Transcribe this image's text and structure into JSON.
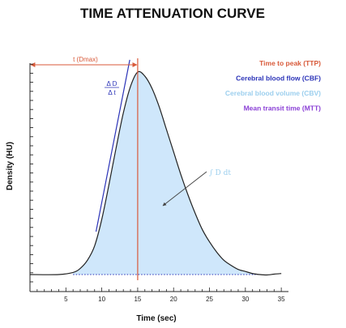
{
  "chart_data": {
    "type": "area",
    "title": "TIME ATTENUATION CURVE",
    "xlabel": "Time (sec)",
    "ylabel": "Density (HU)",
    "xlim": [
      0,
      36
    ],
    "ylim": [
      0,
      100
    ],
    "x_ticks": [
      5,
      10,
      15,
      20,
      25,
      30,
      35
    ],
    "x_tick_labels": [
      "5",
      "10",
      "15",
      "20",
      "25",
      "30",
      "35"
    ],
    "grid": false,
    "legend_position": "top-right",
    "series": [
      {
        "x": [
          0,
          4,
          6,
          7,
          8,
          9,
          10,
          11,
          12,
          13,
          14,
          15,
          16,
          17,
          18,
          19,
          20,
          21,
          22,
          23,
          24,
          25,
          26,
          27,
          28,
          29,
          30,
          31,
          32,
          33,
          34,
          35
        ],
        "y": [
          1,
          1,
          2,
          4,
          8,
          15,
          28,
          45,
          63,
          80,
          93,
          100,
          98,
          92,
          83,
          72,
          61,
          50,
          40,
          31,
          23,
          17,
          12,
          8,
          5.5,
          3.5,
          2.5,
          1.5,
          1,
          0.8,
          1.2,
          1.5
        ]
      }
    ],
    "baseline_y": 1,
    "peak": {
      "x": 15,
      "y": 100
    },
    "tangent": {
      "from": [
        9.2,
        22
      ],
      "to": [
        13.9,
        106
      ]
    },
    "legend": [
      {
        "label": "Time to peak (TTP)",
        "color": "#d85a3a"
      },
      {
        "label": "Cerebral blood flow (CBF)",
        "color": "#2b33b8"
      },
      {
        "label": "Cerebral blood volume (CBV)",
        "color": "#9ccfee"
      },
      {
        "label": "Mean transit time (MTT)",
        "color": "#8a3fd6"
      }
    ],
    "annotations": {
      "tmax_label": "t (Dmax)",
      "slope_numerator": "Δ D",
      "slope_denominator": "Δ t",
      "integral_label": "∫ D dt"
    },
    "colors": {
      "fill": "#cfe7fb",
      "curve": "#222222",
      "ttp_line": "#d85a3a",
      "cbf_line": "#2b33b8",
      "tmax_arrow": "#d85a3a",
      "axis": "#222222",
      "baseline": "#2b33b8",
      "integral_text": "#9ccfee",
      "pointer": "#444444"
    }
  }
}
